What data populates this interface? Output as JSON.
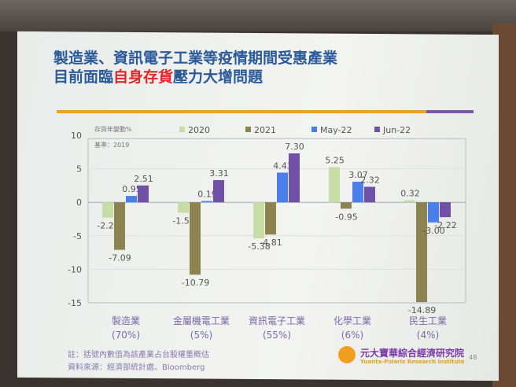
{
  "slide": {
    "title_line1": "製造業、資訊電子工業等疫情期間受惠產業",
    "title_line2_pre": "目前面臨",
    "title_line2_red": "自身存貨",
    "title_line2_post": "壓力大增問題",
    "note": "註：括號內數值為該產業占台股權重概估",
    "source": "資料來源：經濟部統計處、Bloomberg",
    "logo_name": "元大寶華綜合經濟研究院",
    "logo_sub": "Yuanta-Polaris Research Institute",
    "page_number": "48"
  },
  "chart_data": {
    "type": "bar",
    "ylabel": "存貨年變動%",
    "annotation": "基準：2019",
    "ylim": [
      -15,
      10
    ],
    "yticks": [
      "10",
      "5",
      "0",
      "-5",
      "-10",
      "-15"
    ],
    "legend_placement": "top",
    "categories": [
      "製造業",
      "金屬機電工業",
      "資訊電子工業",
      "化學工業",
      "民生工業"
    ],
    "category_weights": [
      "(70%)",
      "(5%)",
      "(55%)",
      "(6%)",
      "(4%)"
    ],
    "series": [
      {
        "name": "2020",
        "color": "#c8dca8",
        "values": [
          -2.29,
          -1.56,
          -5.38,
          5.25,
          0.32
        ]
      },
      {
        "name": "2021",
        "color": "#8c8450",
        "values": [
          -7.09,
          -10.79,
          -4.81,
          -0.95,
          -14.89
        ]
      },
      {
        "name": "May-22",
        "color": "#4a7ee8",
        "values": [
          0.95,
          0.19,
          4.43,
          3.07,
          -3.0
        ]
      },
      {
        "name": "Jun-22",
        "color": "#7050a8",
        "values": [
          2.51,
          3.31,
          7.3,
          2.32,
          -2.22
        ]
      }
    ]
  }
}
